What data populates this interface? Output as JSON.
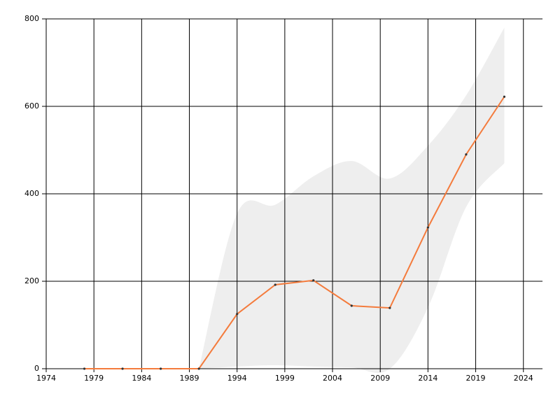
{
  "chart_data": {
    "type": "line",
    "x": [
      1978,
      1982,
      1986,
      1990,
      1994,
      1998,
      2002,
      2006,
      2010,
      2014,
      2018,
      2022
    ],
    "series": [
      {
        "color": "#f47b3c",
        "values": [
          0,
          0,
          0,
          0,
          125,
          192,
          202,
          144,
          139,
          323,
          490,
          622
        ]
      }
    ],
    "band": {
      "color": "#eeeeee",
      "upper": [
        null,
        null,
        null,
        0,
        355,
        375,
        440,
        475,
        435,
        510,
        625,
        780
      ],
      "lower": [
        null,
        null,
        null,
        0,
        5,
        8,
        5,
        3,
        0,
        140,
        370,
        470
      ]
    },
    "xlim": [
      1974,
      2026
    ],
    "xticks": [
      1974,
      1979,
      1984,
      1989,
      1994,
      1999,
      2004,
      2009,
      2014,
      2019,
      2024
    ],
    "ylim": [
      0,
      800
    ],
    "yticks": [
      0,
      200,
      400,
      600,
      800
    ],
    "grid": true
  }
}
